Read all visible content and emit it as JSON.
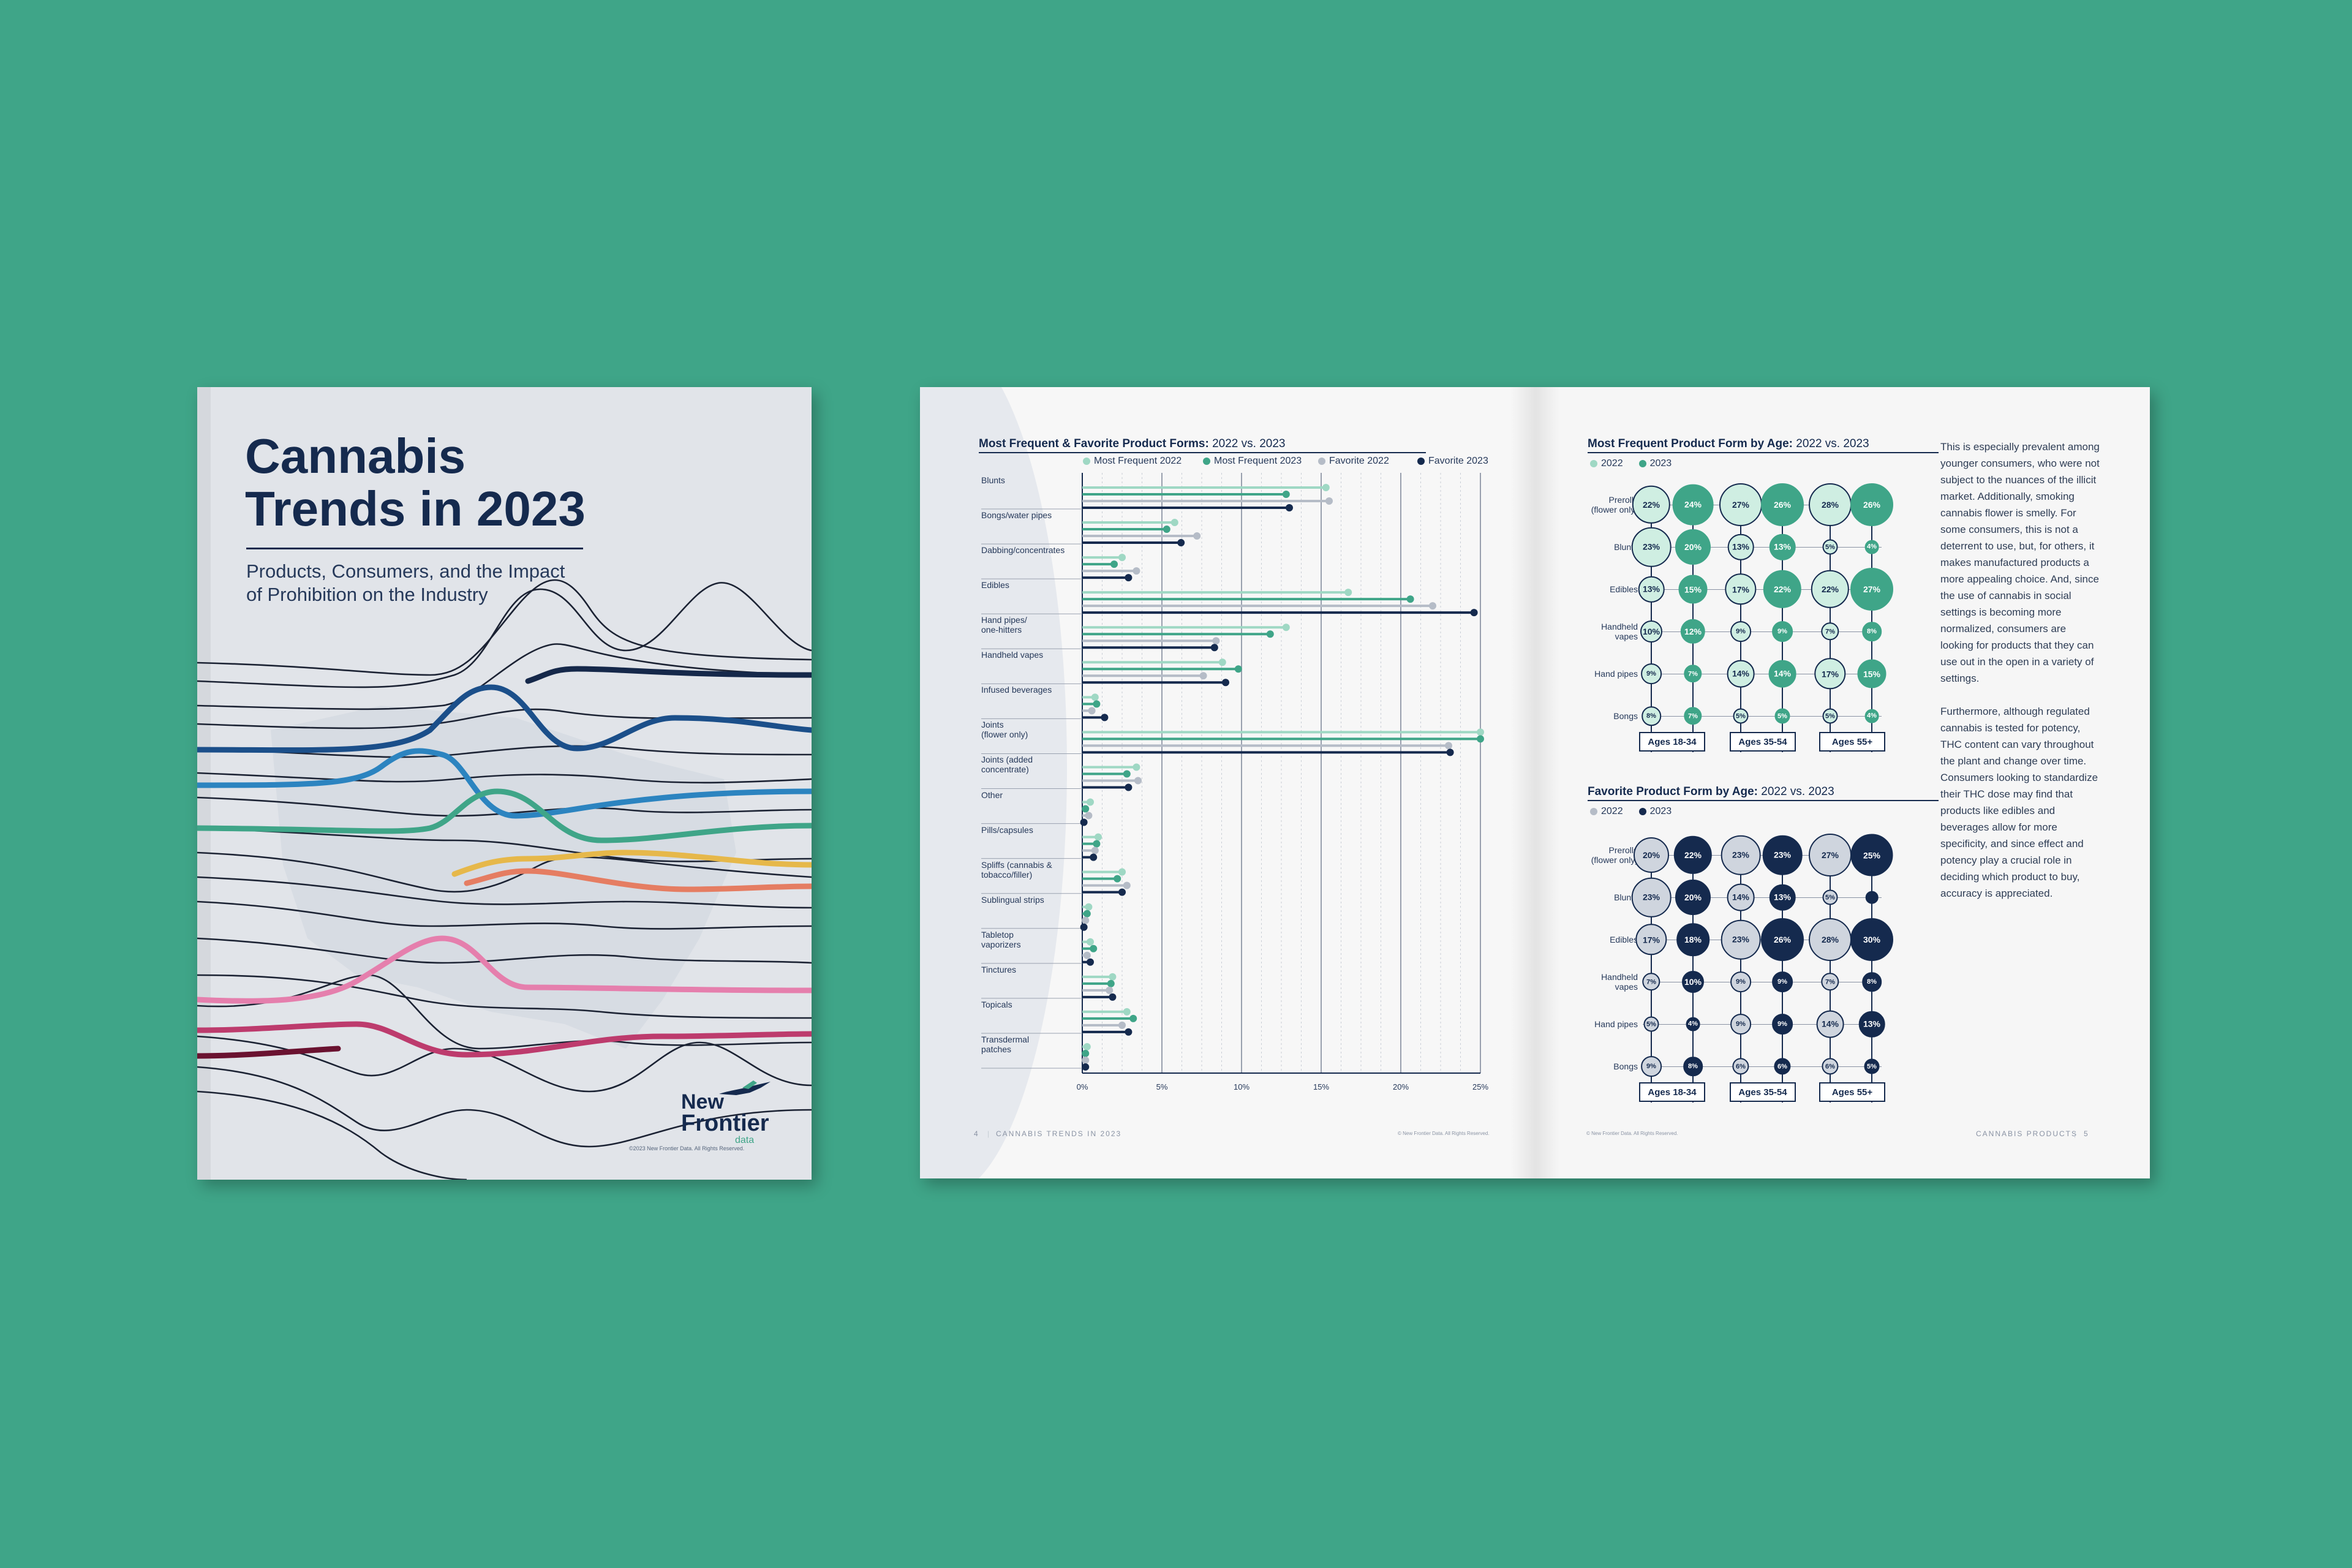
{
  "cover": {
    "title": "Cannabis\nTrends in 2023",
    "subtitle": "Products, Consumers, and the Impact\nof Prohibition on the Industry",
    "logo_new": "New",
    "logo_frontier": "Frontier",
    "logo_data": "data",
    "copyright": "©2023 New Frontier Data. All Rights Reserved."
  },
  "colors": {
    "background": "#3fa588",
    "navy": "#152a4e",
    "teal": "#3fa588",
    "light_teal": "#9fd8c4",
    "grey": "#b5bcc7"
  },
  "left_page": {
    "chart_title_bold": "Most Frequent & Favorite Product Forms:",
    "chart_title_rest": " 2022 vs. 2023",
    "footer_page": "4",
    "footer_title": "CANNABIS TRENDS IN 2023",
    "footer_copy": "© New Frontier Data. All Rights Reserved."
  },
  "chart_data": {
    "type": "bar",
    "title": "Most Frequent & Favorite Product Forms: 2022 vs. 2023",
    "categories": [
      "Blunts",
      "Bongs/water pipes",
      "Dabbing/concentrates",
      "Edibles",
      "Hand pipes/\none-hitters",
      "Handheld vapes",
      "Infused beverages",
      "Joints\n(flower only)",
      "Joints (added\nconcentrate)",
      "Other",
      "Pills/capsules",
      "Spliffs (cannabis &\ntobacco/filler)",
      "Sublingual strips",
      "Tabletop\nvaporizers",
      "Tinctures",
      "Topicals",
      "Transdermal\npatches"
    ],
    "series": [
      {
        "name": "Most Frequent 2022",
        "color": "#9fd8c4",
        "values": [
          15.3,
          5.8,
          2.5,
          16.7,
          12.8,
          8.8,
          0.8,
          25.0,
          3.4,
          0.5,
          1.0,
          2.5,
          0.4,
          0.5,
          1.9,
          2.8,
          0.3
        ]
      },
      {
        "name": "Most Frequent 2023",
        "color": "#3fa588",
        "values": [
          12.8,
          5.3,
          2.0,
          20.6,
          11.8,
          9.8,
          0.9,
          25.0,
          2.8,
          0.2,
          0.9,
          2.2,
          0.3,
          0.7,
          1.8,
          3.2,
          0.2
        ]
      },
      {
        "name": "Favorite 2022",
        "color": "#b5bcc7",
        "values": [
          15.5,
          7.2,
          3.4,
          22.0,
          8.4,
          7.6,
          0.6,
          23.0,
          3.5,
          0.4,
          0.8,
          2.8,
          0.2,
          0.3,
          1.7,
          2.5,
          0.2
        ]
      },
      {
        "name": "Favorite 2023",
        "color": "#152a4e",
        "values": [
          13.0,
          6.2,
          2.9,
          24.6,
          8.3,
          9.0,
          1.4,
          23.1,
          2.9,
          0.1,
          0.7,
          2.5,
          0.1,
          0.5,
          1.9,
          2.9,
          0.2
        ]
      }
    ],
    "x_ticks": [
      "0%",
      "5%",
      "10%",
      "15%",
      "20%",
      "25%"
    ],
    "xlim": [
      0,
      25
    ],
    "legend": "top"
  },
  "right_page": {
    "freq_title_bold": "Most Frequent Product Form by Age:",
    "freq_title_rest": " 2022 vs. 2023",
    "fav_title_bold": "Favorite Product Form by Age:",
    "fav_title_rest": " 2022 vs. 2023",
    "legend_2022": "2022",
    "legend_2023": "2023",
    "ages": [
      "Ages 18-34",
      "Ages 35-54",
      "Ages 55+"
    ],
    "freq_rows": [
      {
        "label": "Prerolls\n(flower only)",
        "values": [
          "22%",
          "24%",
          "27%",
          "26%",
          "28%",
          "26%"
        ]
      },
      {
        "label": "Blunts",
        "values": [
          "23%",
          "20%",
          "13%",
          "13%",
          "5%",
          "4%"
        ]
      },
      {
        "label": "Edibles",
        "values": [
          "13%",
          "15%",
          "17%",
          "22%",
          "22%",
          "27%"
        ]
      },
      {
        "label": "Handheld\nvapes",
        "values": [
          "10%",
          "12%",
          "9%",
          "9%",
          "7%",
          "8%"
        ]
      },
      {
        "label": "Hand pipes",
        "values": [
          "9%",
          "7%",
          "14%",
          "14%",
          "17%",
          "15%"
        ]
      },
      {
        "label": "Bongs",
        "values": [
          "8%",
          "7%",
          "5%",
          "5%",
          "5%",
          "4%"
        ]
      }
    ],
    "fav_rows": [
      {
        "label": "Prerolls\n(flower only)",
        "values": [
          "20%",
          "22%",
          "23%",
          "23%",
          "27%",
          "25%"
        ]
      },
      {
        "label": "Blunts",
        "values": [
          "23%",
          "20%",
          "14%",
          "13%",
          "5%",
          ""
        ]
      },
      {
        "label": "Edibles",
        "values": [
          "17%",
          "18%",
          "23%",
          "26%",
          "28%",
          "30%"
        ]
      },
      {
        "label": "Handheld\nvapes",
        "values": [
          "7%",
          "10%",
          "9%",
          "9%",
          "7%",
          "8%"
        ]
      },
      {
        "label": "Hand pipes",
        "values": [
          "5%",
          "4%",
          "9%",
          "9%",
          "14%",
          "13%"
        ]
      },
      {
        "label": "Bongs",
        "values": [
          "9%",
          "8%",
          "6%",
          "6%",
          "6%",
          "5%"
        ]
      }
    ],
    "body_p1": "This is especially prevalent among younger consumers, who were not subject to the nuances of the illicit market. Additionally, smoking cannabis flower is smelly. For some consumers, this is not a deterrent to use, but, for others, it makes manufactured products a more appealing choice. And, since the use of cannabis in social settings is becoming more normalized, consumers are looking for products that they can use out in the open in a variety of settings.",
    "body_p2": "Furthermore, although regulated cannabis is tested for potency, THC content can vary throughout the plant and change over time. Consumers looking to standardize their THC dose may find that products like edibles and beverages allow for more specificity, and since effect and potency play a crucial role in deciding which product to buy, accuracy is appreciated.",
    "footer_copy": "© New Frontier Data. All Rights Reserved.",
    "footer_section": "CANNABIS PRODUCTS",
    "footer_page": "5"
  }
}
